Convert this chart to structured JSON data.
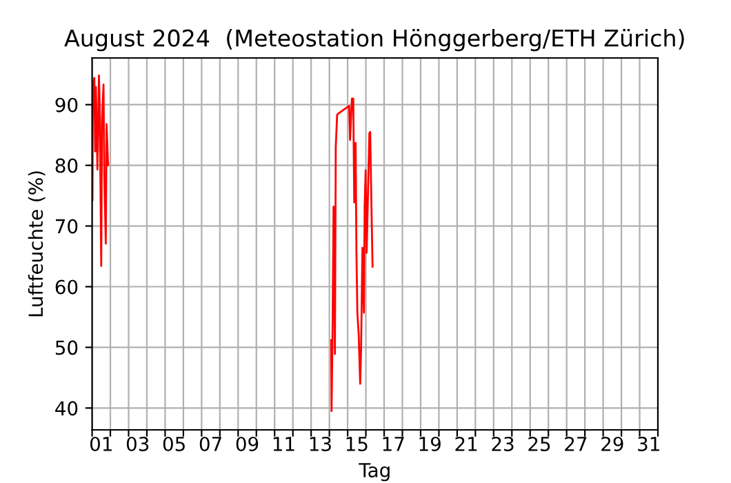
{
  "chart_data": {
    "type": "line",
    "title": "August 2024  (Meteostation Hönggerberg/ETH Zürich)",
    "xlabel": "Tag",
    "ylabel": "Luftfeuchte (%)",
    "x": [
      "2024-08-01T00:30",
      "2024-08-01T01:00",
      "2024-08-01T03:00",
      "2024-08-01T04:00",
      "2024-08-01T05:00",
      "2024-08-01T07:00",
      "2024-08-01T09:00",
      "2024-08-01T10:00",
      "2024-08-01T12:00",
      "2024-08-01T13:00",
      "2024-08-01T15:00",
      "2024-08-01T16:00",
      "2024-08-01T18:00",
      "2024-08-01T19:00",
      "2024-08-01T21:00",
      "2024-08-07T12:00",
      "2024-08-14T02:24",
      "2024-08-14T02:54",
      "2024-08-14T04:12",
      "2024-08-14T05:30",
      "2024-08-14T07:18",
      "2024-08-14T08:24",
      "2024-08-14T10:12",
      "2024-08-14T11:24",
      "2024-08-15T02:00",
      "2024-08-15T03:12",
      "2024-08-15T05:36",
      "2024-08-15T07:24",
      "2024-08-15T08:42",
      "2024-08-15T10:30",
      "2024-08-15T11:36",
      "2024-08-15T12:48",
      "2024-08-15T14:36",
      "2024-08-15T16:30",
      "2024-08-15T17:42",
      "2024-08-15T19:30",
      "2024-08-15T21:24",
      "2024-08-15T22:24",
      "2024-08-15T23:42",
      "2024-08-16T01:00",
      "2024-08-16T02:48",
      "2024-08-16T04:36",
      "2024-08-16T05:42",
      "2024-08-16T07:00",
      "2024-08-16T08:48"
    ],
    "series": [
      {
        "color": "#ff0000",
        "values": [
          74.3,
          93.6,
          94.4,
          82.3,
          92.9,
          79.3,
          94.8,
          89.8,
          63.4,
          87.6,
          93.3,
          78.5,
          67.1,
          86.8,
          80,
          null,
          51.2,
          39.5,
          52.7,
          73.2,
          48.9,
          83,
          88.3,
          88.5,
          89.8,
          84.2,
          91,
          91,
          73.9,
          83.7,
          65.6,
          55.7,
          52,
          44,
          49.7,
          66.4,
          55.7,
          73.2,
          79.2,
          65.6,
          75.5,
          85.3,
          85.5,
          75.5,
          63.3
        ]
      }
    ],
    "xlim": [
      "2024-08-01T00:00",
      "2024-09-01T00:00"
    ],
    "xticks": [
      {
        "value": "2024-08-01T00:00",
        "label": null
      },
      {
        "value": "2024-08-01T12:00",
        "label": "01"
      },
      {
        "value": "2024-08-02T00:00",
        "label": null
      },
      {
        "value": "2024-08-03T00:00",
        "label": null
      },
      {
        "value": "2024-08-03T12:00",
        "label": "03"
      },
      {
        "value": "2024-08-04T00:00",
        "label": null
      },
      {
        "value": "2024-08-05T00:00",
        "label": null
      },
      {
        "value": "2024-08-05T12:00",
        "label": "05"
      },
      {
        "value": "2024-08-06T00:00",
        "label": null
      },
      {
        "value": "2024-08-07T00:00",
        "label": null
      },
      {
        "value": "2024-08-07T12:00",
        "label": "07"
      },
      {
        "value": "2024-08-08T00:00",
        "label": null
      },
      {
        "value": "2024-08-09T00:00",
        "label": null
      },
      {
        "value": "2024-08-09T12:00",
        "label": "09"
      },
      {
        "value": "2024-08-10T00:00",
        "label": null
      },
      {
        "value": "2024-08-11T00:00",
        "label": null
      },
      {
        "value": "2024-08-11T12:00",
        "label": "11"
      },
      {
        "value": "2024-08-12T00:00",
        "label": null
      },
      {
        "value": "2024-08-13T00:00",
        "label": null
      },
      {
        "value": "2024-08-13T12:00",
        "label": "13"
      },
      {
        "value": "2024-08-14T00:00",
        "label": null
      },
      {
        "value": "2024-08-15T00:00",
        "label": null
      },
      {
        "value": "2024-08-15T12:00",
        "label": "15"
      },
      {
        "value": "2024-08-16T00:00",
        "label": null
      },
      {
        "value": "2024-08-17T00:00",
        "label": null
      },
      {
        "value": "2024-08-17T12:00",
        "label": "17"
      },
      {
        "value": "2024-08-18T00:00",
        "label": null
      },
      {
        "value": "2024-08-19T00:00",
        "label": null
      },
      {
        "value": "2024-08-19T12:00",
        "label": "19"
      },
      {
        "value": "2024-08-20T00:00",
        "label": null
      },
      {
        "value": "2024-08-21T00:00",
        "label": null
      },
      {
        "value": "2024-08-21T12:00",
        "label": "21"
      },
      {
        "value": "2024-08-22T00:00",
        "label": null
      },
      {
        "value": "2024-08-23T00:00",
        "label": null
      },
      {
        "value": "2024-08-23T12:00",
        "label": "23"
      },
      {
        "value": "2024-08-24T00:00",
        "label": null
      },
      {
        "value": "2024-08-25T00:00",
        "label": null
      },
      {
        "value": "2024-08-25T12:00",
        "label": "25"
      },
      {
        "value": "2024-08-26T00:00",
        "label": null
      },
      {
        "value": "2024-08-27T00:00",
        "label": null
      },
      {
        "value": "2024-08-27T12:00",
        "label": "27"
      },
      {
        "value": "2024-08-28T00:00",
        "label": null
      },
      {
        "value": "2024-08-29T00:00",
        "label": null
      },
      {
        "value": "2024-08-29T12:00",
        "label": "29"
      },
      {
        "value": "2024-08-30T00:00",
        "label": null
      },
      {
        "value": "2024-08-31T00:00",
        "label": null
      },
      {
        "value": "2024-08-31T12:00",
        "label": "31"
      },
      {
        "value": "2024-09-01T00:00",
        "label": null
      }
    ],
    "ylim": [
      36.4,
      97.7
    ],
    "yticks": [
      40,
      50,
      60,
      70,
      80,
      90
    ],
    "grid": true
  }
}
